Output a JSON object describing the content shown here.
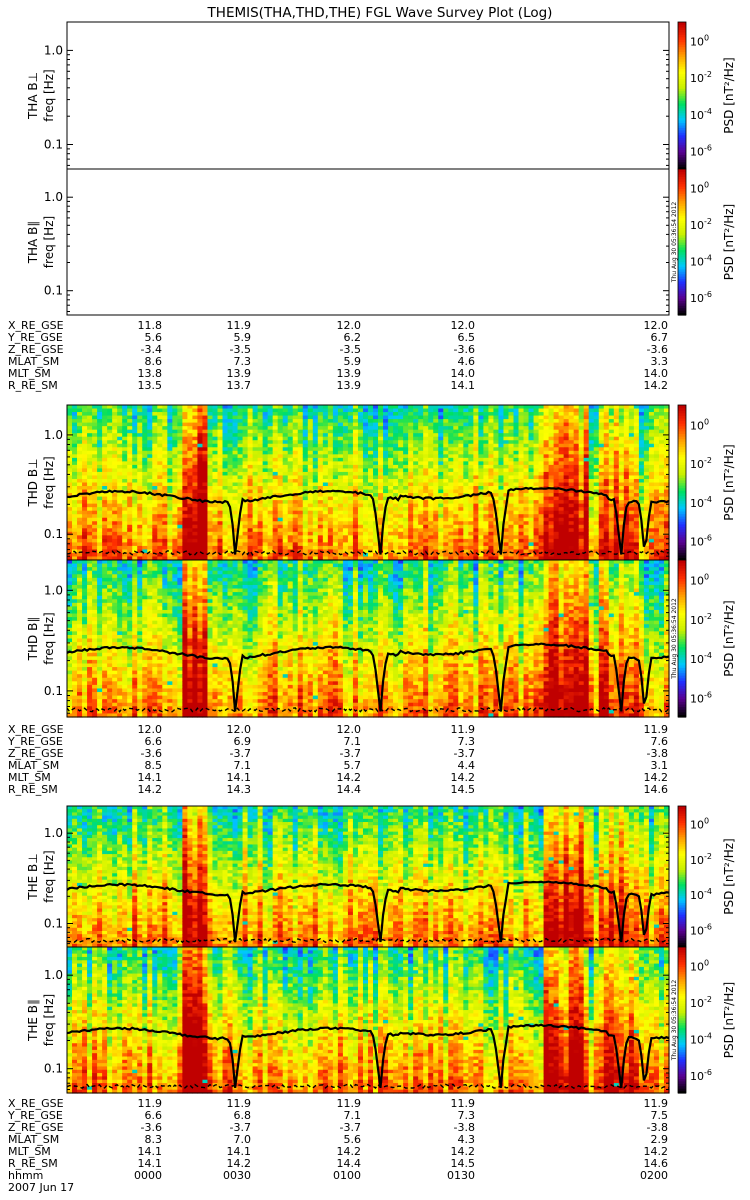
{
  "title": "THEMIS(THA,THD,THE) FGL Wave Survey Plot (Log)",
  "stamp": "Thu Aug 30 05:36:54 2012",
  "freq_ticks": [
    "1.0",
    "0.1"
  ],
  "colorbar": {
    "label": "PSD [nT²/Hz]",
    "tick_mantissa": "10",
    "exponents": [
      "0",
      "-2",
      "-4",
      "-6"
    ],
    "colors": [
      "#000000",
      "#5a0090",
      "#2030ff",
      "#00c8ff",
      "#00e060",
      "#c8f000",
      "#ffff00",
      "#ffa000",
      "#ff3000",
      "#c00000"
    ]
  },
  "time_axis": {
    "row_label": "hhmm",
    "ticks": [
      "0000",
      "0030",
      "0100",
      "0130",
      "0200"
    ],
    "date": "2007 Jun 17"
  },
  "chart_data": [
    {
      "type": "heatmap",
      "probe": "THA",
      "panel": "THA B⊥",
      "ylabel": "freq [Hz]",
      "has_data": false
    },
    {
      "type": "heatmap",
      "probe": "THA",
      "panel": "THA B∥",
      "ylabel": "freq [Hz]",
      "has_data": false
    },
    {
      "type": "heatmap",
      "probe": "THD",
      "panel": "THD B⊥",
      "ylabel": "freq [Hz]",
      "has_data": true
    },
    {
      "type": "heatmap",
      "probe": "THD",
      "panel": "THD B∥",
      "ylabel": "freq [Hz]",
      "has_data": true
    },
    {
      "type": "heatmap",
      "probe": "THE",
      "panel": "THE B⊥",
      "ylabel": "freq [Hz]",
      "has_data": true
    },
    {
      "type": "heatmap",
      "probe": "THE",
      "panel": "THE B∥",
      "ylabel": "freq [Hz]",
      "has_data": true
    }
  ],
  "ephemeris": [
    {
      "probe": "THA",
      "rows": [
        {
          "label": "X_RE_GSE",
          "values": [
            "11.8",
            "11.9",
            "12.0",
            "12.0",
            "12.0"
          ]
        },
        {
          "label": "Y_RE_GSE",
          "values": [
            "5.6",
            "5.9",
            "6.2",
            "6.5",
            "6.7"
          ]
        },
        {
          "label": "Z_RE_GSE",
          "values": [
            "-3.4",
            "-3.5",
            "-3.5",
            "-3.6",
            "-3.6"
          ]
        },
        {
          "label": "MLAT_SM",
          "values": [
            "8.6",
            "7.3",
            "5.9",
            "4.6",
            "3.3"
          ]
        },
        {
          "label": "MLT_SM",
          "values": [
            "13.8",
            "13.9",
            "13.9",
            "14.0",
            "14.0"
          ]
        },
        {
          "label": "R_RE_SM",
          "values": [
            "13.5",
            "13.7",
            "13.9",
            "14.1",
            "14.2"
          ]
        }
      ]
    },
    {
      "probe": "THD",
      "rows": [
        {
          "label": "X_RE_GSE",
          "values": [
            "12.0",
            "12.0",
            "12.0",
            "11.9",
            "11.9"
          ]
        },
        {
          "label": "Y_RE_GSE",
          "values": [
            "6.6",
            "6.9",
            "7.1",
            "7.3",
            "7.6"
          ]
        },
        {
          "label": "Z_RE_GSE",
          "values": [
            "-3.6",
            "-3.7",
            "-3.7",
            "-3.7",
            "-3.8"
          ]
        },
        {
          "label": "MLAT_SM",
          "values": [
            "8.5",
            "7.1",
            "5.7",
            "4.4",
            "3.1"
          ]
        },
        {
          "label": "MLT_SM",
          "values": [
            "14.1",
            "14.1",
            "14.2",
            "14.2",
            "14.2"
          ]
        },
        {
          "label": "R_RE_SM",
          "values": [
            "14.2",
            "14.3",
            "14.4",
            "14.5",
            "14.6"
          ]
        }
      ]
    },
    {
      "probe": "THE",
      "rows": [
        {
          "label": "X_RE_GSE",
          "values": [
            "11.9",
            "11.9",
            "11.9",
            "11.9",
            "11.9"
          ]
        },
        {
          "label": "Y_RE_GSE",
          "values": [
            "6.6",
            "6.8",
            "7.1",
            "7.3",
            "7.5"
          ]
        },
        {
          "label": "Z_RE_GSE",
          "values": [
            "-3.6",
            "-3.7",
            "-3.7",
            "-3.8",
            "-3.8"
          ]
        },
        {
          "label": "MLAT_SM",
          "values": [
            "8.3",
            "7.0",
            "5.6",
            "4.3",
            "2.9"
          ]
        },
        {
          "label": "MLT_SM",
          "values": [
            "14.1",
            "14.1",
            "14.2",
            "14.2",
            "14.2"
          ]
        },
        {
          "label": "R_RE_SM",
          "values": [
            "14.1",
            "14.2",
            "14.4",
            "14.5",
            "14.6"
          ]
        }
      ]
    }
  ]
}
